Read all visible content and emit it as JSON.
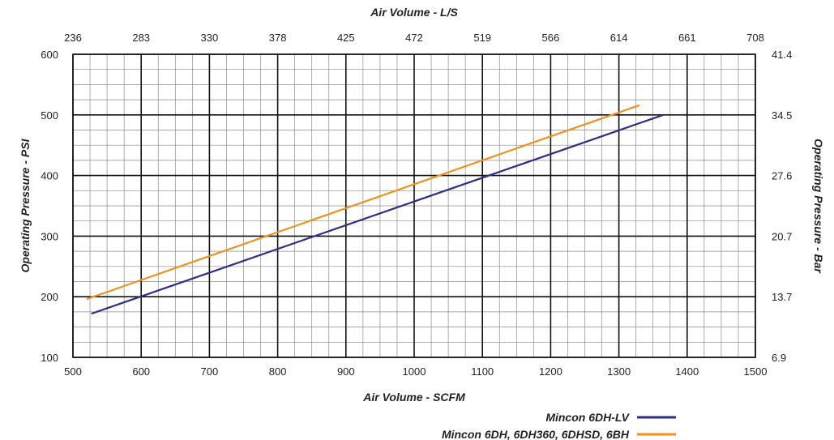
{
  "chart_data": {
    "type": "line",
    "xlabel": "Air Volume - SCFM",
    "x2label": "Air Volume - L/S",
    "ylabel": "Operating Pressure - PSI",
    "y2label": "Operating Pressure - Bar",
    "xlim": [
      500,
      1500
    ],
    "ylim": [
      100,
      600
    ],
    "x_ticks": [
      "500",
      "600",
      "700",
      "800",
      "900",
      "1000",
      "1100",
      "1200",
      "1300",
      "1400",
      "1500"
    ],
    "x2_ticks": [
      "236",
      "283",
      "330",
      "378",
      "425",
      "472",
      "519",
      "566",
      "614",
      "661",
      "708"
    ],
    "y_ticks": [
      "100",
      "200",
      "300",
      "400",
      "500",
      "600"
    ],
    "y2_ticks": [
      "6.9",
      "13.7",
      "20.7",
      "27.6",
      "34.5",
      "41.4"
    ],
    "grid": true,
    "legend_position": "bottom-right",
    "series": [
      {
        "name": "Mincon 6DH-LV",
        "color": "#2b2f86",
        "x": [
          527,
          1365
        ],
        "y": [
          172,
          500
        ]
      },
      {
        "name": "Mincon 6DH, 6DH360, 6DHSD, 6BH",
        "color": "#f0921e",
        "x": [
          520,
          1330
        ],
        "y": [
          196,
          516
        ]
      }
    ]
  }
}
